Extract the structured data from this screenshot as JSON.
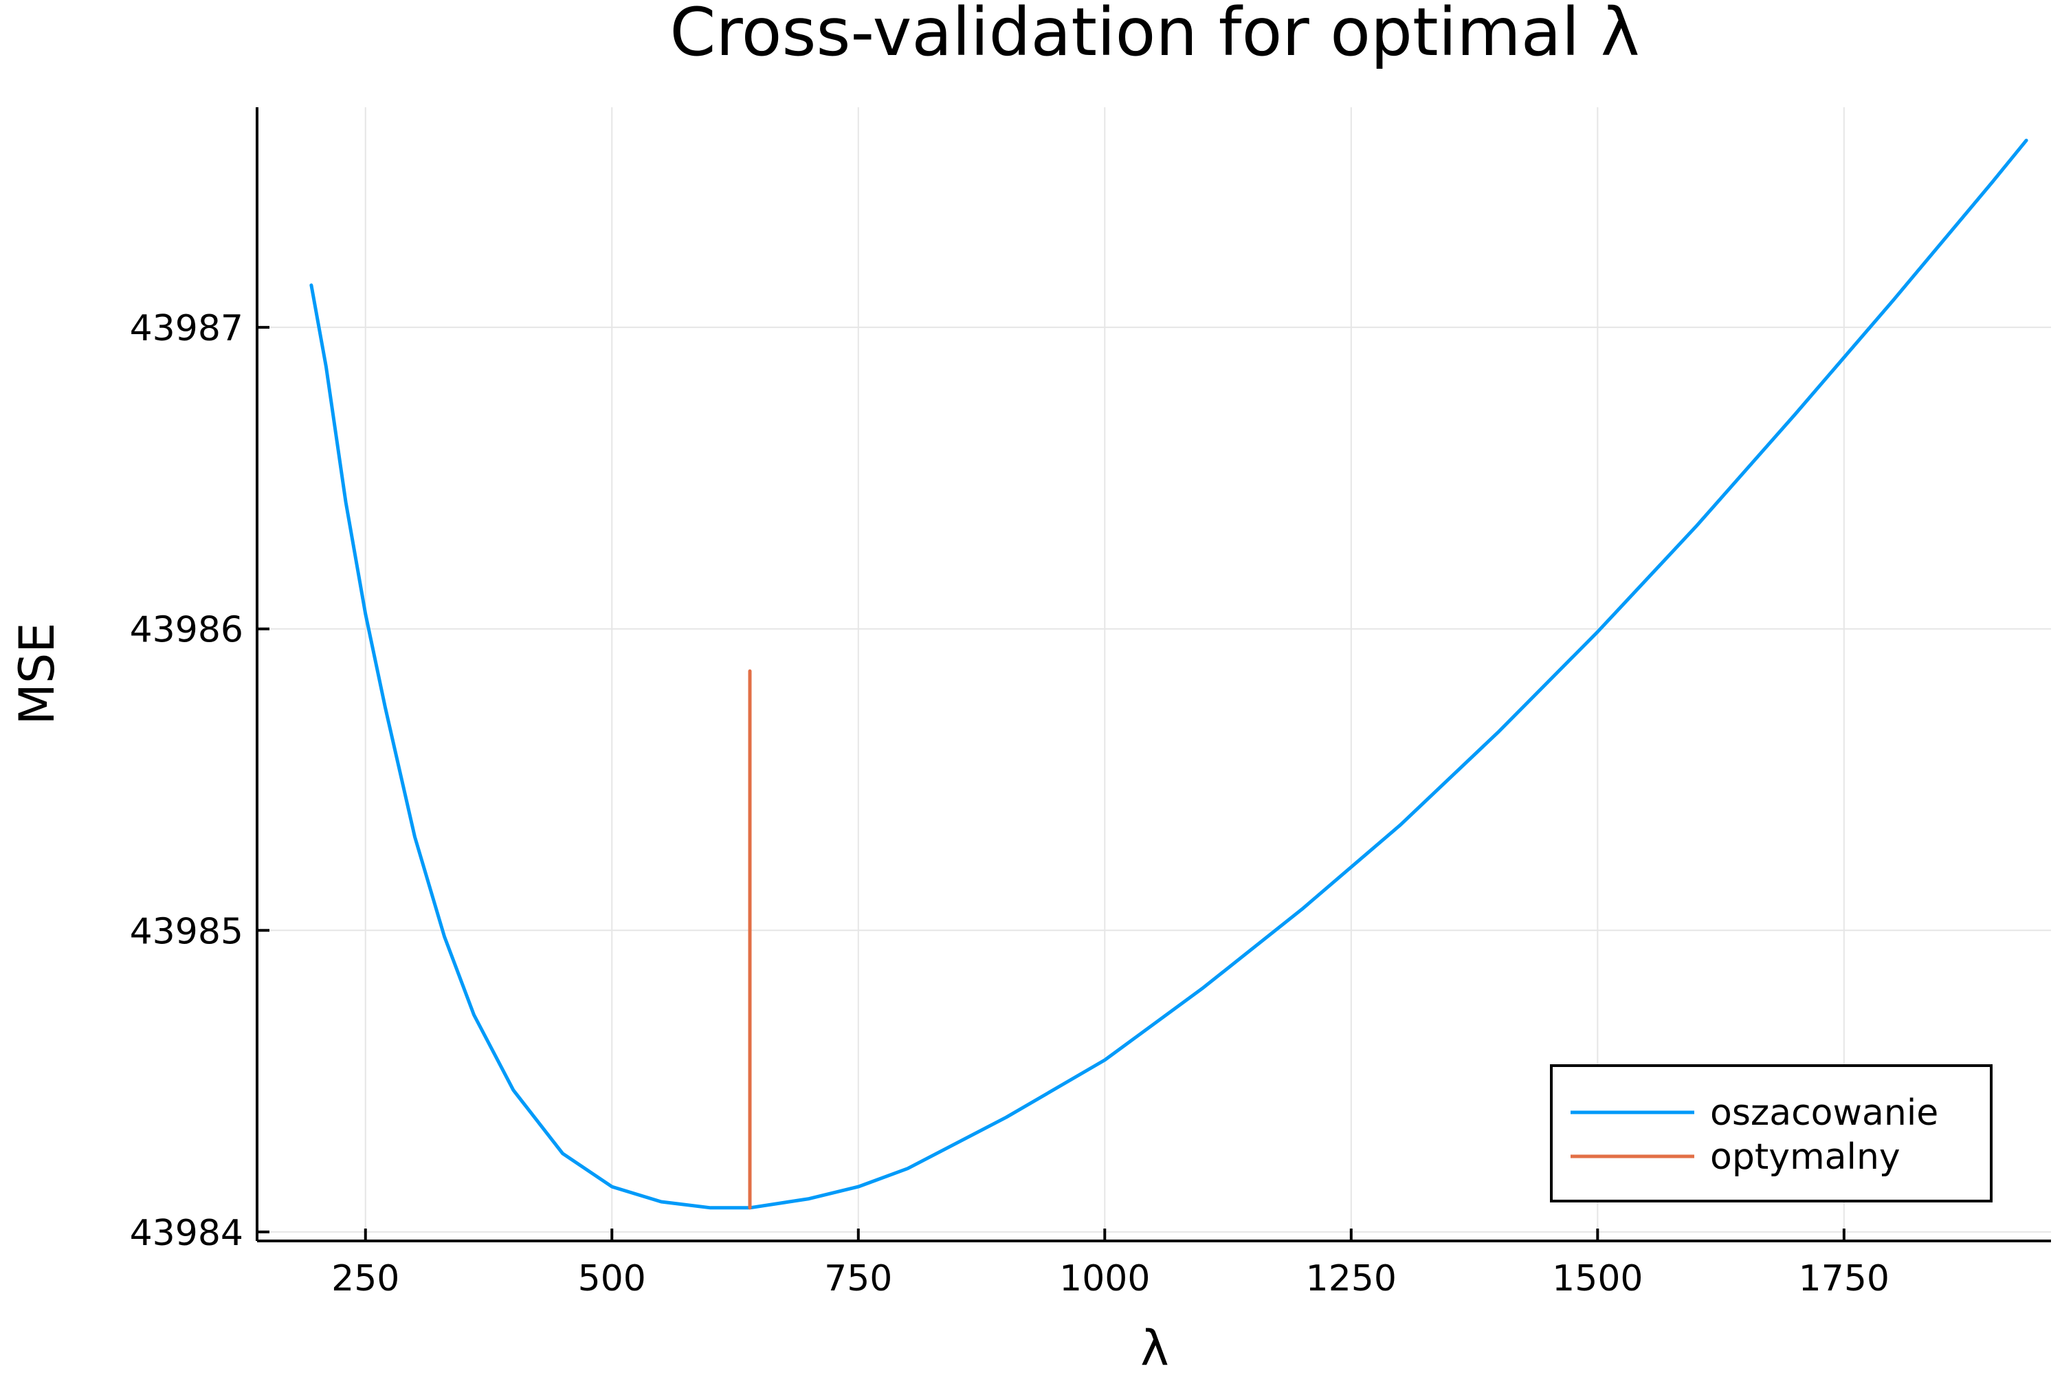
{
  "chart_data": {
    "type": "line",
    "title": "Cross-validation for optimal λ",
    "xlabel": "λ",
    "ylabel": "MSE",
    "xlim": [
      140,
      1960
    ],
    "ylim": [
      43983.97,
      43987.73
    ],
    "xticks": [
      250,
      500,
      750,
      1000,
      1250,
      1500,
      1750
    ],
    "yticks": [
      43984,
      43985,
      43986,
      43987
    ],
    "grid": true,
    "legend_position": "bottom-right",
    "series": [
      {
        "name": "oszacowanie",
        "color": "#009af9",
        "x": [
          195,
          210,
          230,
          250,
          270,
          300,
          330,
          360,
          400,
          450,
          500,
          550,
          600,
          640,
          700,
          750,
          800,
          900,
          1000,
          1100,
          1200,
          1300,
          1400,
          1500,
          1600,
          1700,
          1800,
          1900,
          1935
        ],
        "y": [
          43987.14,
          43986.87,
          43986.42,
          43986.05,
          43985.74,
          43985.31,
          43984.98,
          43984.72,
          43984.47,
          43984.26,
          43984.15,
          43984.1,
          43984.08,
          43984.08,
          43984.11,
          43984.15,
          43984.21,
          43984.38,
          43984.57,
          43984.81,
          43985.07,
          43985.35,
          43985.66,
          43985.99,
          43986.34,
          43986.71,
          43987.09,
          43987.48,
          43987.62
        ]
      },
      {
        "name": "optymalny",
        "color": "#e26f46",
        "x": [
          640,
          640
        ],
        "y": [
          43984.08,
          43985.86
        ]
      }
    ]
  }
}
